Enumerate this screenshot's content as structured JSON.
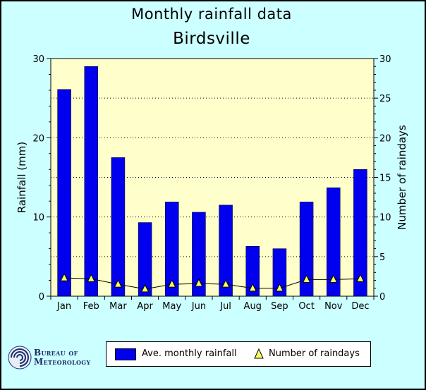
{
  "chart_data": {
    "type": "bar",
    "title": "Monthly rainfall data",
    "subtitle": "Birdsville",
    "categories": [
      "Jan",
      "Feb",
      "Mar",
      "Apr",
      "May",
      "Jun",
      "Jul",
      "Aug",
      "Sep",
      "Oct",
      "Nov",
      "Dec"
    ],
    "ylabel": "Rainfall (mm)",
    "y2label": "Number of raindays",
    "ylim": [
      0,
      30
    ],
    "y2lim": [
      0,
      30
    ],
    "yticks": [
      0,
      10,
      20,
      30
    ],
    "y2ticks": [
      0,
      5,
      10,
      15,
      20,
      25,
      30
    ],
    "grid": true,
    "series": [
      {
        "name": "Ave. monthly rainfall",
        "type": "bar",
        "axis": "left",
        "color": "#0000ee",
        "values": [
          26.1,
          29.0,
          17.5,
          9.3,
          11.9,
          10.6,
          11.5,
          6.3,
          6.0,
          11.9,
          13.7,
          16.0
        ]
      },
      {
        "name": "Number of raindays",
        "type": "line",
        "axis": "right",
        "marker": "triangle",
        "marker_color": "#ffff66",
        "values": [
          2.3,
          2.2,
          1.5,
          0.9,
          1.5,
          1.6,
          1.5,
          1.0,
          1.0,
          2.1,
          2.1,
          2.2
        ]
      }
    ],
    "legend_position": "bottom-center"
  },
  "logo": {
    "line1": "Bureau of",
    "line2": "Meteorology"
  },
  "colors": {
    "background": "#ccffff",
    "plot_background": "#ffffcc",
    "bar": "#0000ee",
    "marker": "#ffff66"
  }
}
